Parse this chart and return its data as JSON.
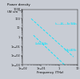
{
  "title": "Power density",
  "title2": "(W cm⁻²)",
  "xlabel": "Frequency (THz)",
  "line_color": "#00e5ff",
  "background_color": "#c8ccd4",
  "axes_bg_color": "#c8ccd4",
  "text_color": "#000000",
  "curve1_label": "In₀.₅₃Al₀.₄₇As/AlAs",
  "curve2_label": "InAs/AlSb",
  "curve3_label": "GaAs/AlAs",
  "xlim": [
    0.01,
    10
  ],
  "ylim": [
    0.001,
    1000
  ]
}
